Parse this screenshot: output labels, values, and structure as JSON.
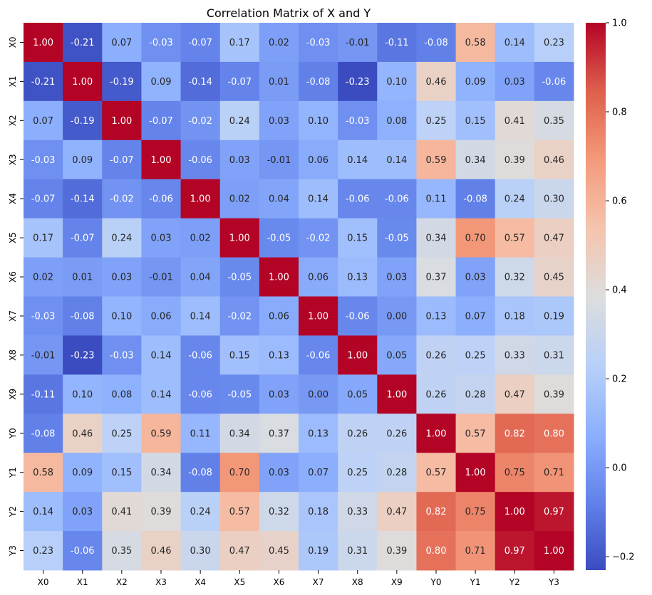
{
  "chart_data": {
    "type": "heatmap",
    "title": "Correlation Matrix of X and Y",
    "xlabel": "",
    "ylabel": "",
    "x_categories": [
      "X0",
      "X1",
      "X2",
      "X3",
      "X4",
      "X5",
      "X6",
      "X7",
      "X8",
      "X9",
      "Y0",
      "Y1",
      "Y2",
      "Y3"
    ],
    "y_categories": [
      "X0",
      "X1",
      "X2",
      "X3",
      "X4",
      "X5",
      "X6",
      "X7",
      "X8",
      "X9",
      "Y0",
      "Y1",
      "Y2",
      "Y3"
    ],
    "values": [
      [
        1.0,
        -0.21,
        0.07,
        -0.03,
        -0.07,
        0.17,
        0.02,
        -0.03,
        -0.01,
        -0.11,
        -0.08,
        0.58,
        0.14,
        0.23
      ],
      [
        -0.21,
        1.0,
        -0.19,
        0.09,
        -0.14,
        -0.07,
        0.01,
        -0.08,
        -0.23,
        0.1,
        0.46,
        0.09,
        0.03,
        -0.06
      ],
      [
        0.07,
        -0.19,
        1.0,
        -0.07,
        -0.02,
        0.24,
        0.03,
        0.1,
        -0.03,
        0.08,
        0.25,
        0.15,
        0.41,
        0.35
      ],
      [
        -0.03,
        0.09,
        -0.07,
        1.0,
        -0.06,
        0.03,
        -0.01,
        0.06,
        0.14,
        0.14,
        0.59,
        0.34,
        0.39,
        0.46
      ],
      [
        -0.07,
        -0.14,
        -0.02,
        -0.06,
        1.0,
        0.02,
        0.04,
        0.14,
        -0.06,
        -0.06,
        0.11,
        -0.08,
        0.24,
        0.3
      ],
      [
        0.17,
        -0.07,
        0.24,
        0.03,
        0.02,
        1.0,
        -0.05,
        -0.02,
        0.15,
        -0.05,
        0.34,
        0.7,
        0.57,
        0.47
      ],
      [
        0.02,
        0.01,
        0.03,
        -0.01,
        0.04,
        -0.05,
        1.0,
        0.06,
        0.13,
        0.03,
        0.37,
        0.03,
        0.32,
        0.45
      ],
      [
        -0.03,
        -0.08,
        0.1,
        0.06,
        0.14,
        -0.02,
        0.06,
        1.0,
        -0.06,
        0.0,
        0.13,
        0.07,
        0.18,
        0.19
      ],
      [
        -0.01,
        -0.23,
        -0.03,
        0.14,
        -0.06,
        0.15,
        0.13,
        -0.06,
        1.0,
        0.05,
        0.26,
        0.25,
        0.33,
        0.31
      ],
      [
        -0.11,
        0.1,
        0.08,
        0.14,
        -0.06,
        -0.05,
        0.03,
        0.0,
        0.05,
        1.0,
        0.26,
        0.28,
        0.47,
        0.39
      ],
      [
        -0.08,
        0.46,
        0.25,
        0.59,
        0.11,
        0.34,
        0.37,
        0.13,
        0.26,
        0.26,
        1.0,
        0.57,
        0.82,
        0.8
      ],
      [
        0.58,
        0.09,
        0.15,
        0.34,
        -0.08,
        0.7,
        0.03,
        0.07,
        0.25,
        0.28,
        0.57,
        1.0,
        0.75,
        0.71
      ],
      [
        0.14,
        0.03,
        0.41,
        0.39,
        0.24,
        0.57,
        0.32,
        0.18,
        0.33,
        0.47,
        0.82,
        0.75,
        1.0,
        0.97
      ],
      [
        0.23,
        -0.06,
        0.35,
        0.46,
        0.3,
        0.47,
        0.45,
        0.19,
        0.31,
        0.39,
        0.8,
        0.71,
        0.97,
        1.0
      ]
    ],
    "value_format": "2 decimals",
    "annotated": true,
    "colormap": "coolwarm",
    "vmin": -0.23,
    "vmax": 1.0,
    "colorbar": {
      "ticks": [
        -0.2,
        0.0,
        0.2,
        0.4,
        0.6,
        0.8,
        1.0
      ],
      "tick_labels": [
        "−0.2",
        "0.0",
        "0.2",
        "0.4",
        "0.6",
        "0.8",
        "1.0"
      ],
      "placement": "right"
    },
    "grid": false
  }
}
